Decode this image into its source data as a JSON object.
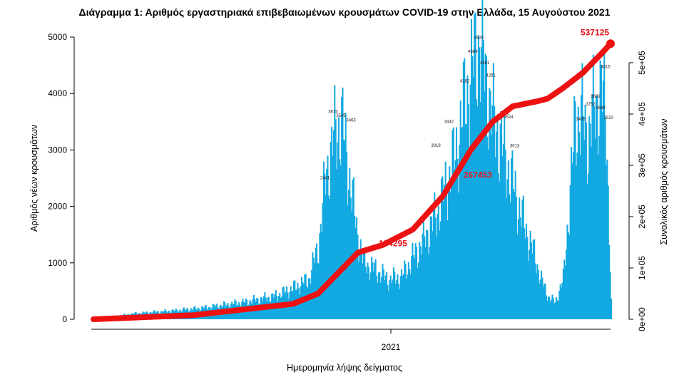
{
  "chart_data": {
    "type": "bar",
    "title": "Διάγραμμα 1: Αριθμός εργαστηριακά επιβεβαιωμένων κρουσμάτων COVID-19 στην Ελλάδα, 15 Αυγούστου 2021",
    "xlabel": "Ημερομηνία λήψης δείγματος",
    "ylabel": "Αριθμός νέων κρουσμάτων",
    "ylabel_right": "Συνολικός αριθμός κρουσμάτων",
    "x_tick_labels": [
      "2021"
    ],
    "y_ticks": [
      "0",
      "1000",
      "2000",
      "3000",
      "4000",
      "5000"
    ],
    "y2_ticks": [
      "0e+00",
      "1e+05",
      "2e+05",
      "3e+05",
      "4e+05",
      "5e+05"
    ],
    "ylim": [
      0,
      5000
    ],
    "y2lim": [
      0,
      560000
    ],
    "series": [
      {
        "kind": "bar",
        "color": "#12a9e2",
        "anchors": [
          [
            0,
            0
          ],
          [
            40,
            100
          ],
          [
            80,
            150
          ],
          [
            110,
            200
          ],
          [
            150,
            300
          ],
          [
            180,
            400
          ],
          [
            200,
            550
          ],
          [
            215,
            700
          ],
          [
            225,
            1300
          ],
          [
            232,
            2500
          ],
          [
            240,
            3200
          ],
          [
            248,
            3500
          ],
          [
            256,
            2500
          ],
          [
            263,
            1600
          ],
          [
            270,
            1000
          ],
          [
            280,
            900
          ],
          [
            295,
            700
          ],
          [
            308,
            750
          ],
          [
            320,
            1100
          ],
          [
            332,
            1450
          ],
          [
            342,
            1800
          ],
          [
            352,
            2300
          ],
          [
            362,
            2900
          ],
          [
            372,
            3900
          ],
          [
            380,
            4500
          ],
          [
            386,
            4928
          ],
          [
            392,
            4300
          ],
          [
            400,
            3500
          ],
          [
            408,
            3100
          ],
          [
            416,
            2600
          ],
          [
            424,
            2100
          ],
          [
            432,
            1600
          ],
          [
            440,
            1200
          ],
          [
            448,
            700
          ],
          [
            455,
            400
          ],
          [
            462,
            300
          ],
          [
            470,
            700
          ],
          [
            476,
            2000
          ],
          [
            482,
            3500
          ],
          [
            488,
            3600
          ],
          [
            495,
            3200
          ],
          [
            502,
            3800
          ],
          [
            508,
            4000
          ],
          [
            513,
            3600
          ],
          [
            518,
            300
          ]
        ]
      },
      {
        "kind": "cumulative",
        "color": "#ee1111",
        "anchors": [
          [
            0,
            0
          ],
          [
            100,
            8000
          ],
          [
            200,
            30000
          ],
          [
            225,
            50000
          ],
          [
            250,
            100000
          ],
          [
            265,
            130000
          ],
          [
            290,
            145000
          ],
          [
            320,
            175000
          ],
          [
            350,
            240000
          ],
          [
            378,
            330000
          ],
          [
            400,
            385000
          ],
          [
            420,
            415000
          ],
          [
            445,
            425000
          ],
          [
            455,
            430000
          ],
          [
            470,
            450000
          ],
          [
            490,
            480000
          ],
          [
            510,
            520000
          ],
          [
            518,
            537125
          ]
        ]
      }
    ],
    "bar_labels": [
      {
        "x": 232,
        "value": "2441"
      },
      {
        "x": 240,
        "value": "3615"
      },
      {
        "x": 248,
        "value": "3545"
      },
      {
        "x": 258,
        "value": "3463"
      },
      {
        "x": 343,
        "value": "3018"
      },
      {
        "x": 356,
        "value": "3442"
      },
      {
        "x": 372,
        "value": "4162"
      },
      {
        "x": 380,
        "value": "4684"
      },
      {
        "x": 386,
        "value": "4928"
      },
      {
        "x": 392,
        "value": "4481"
      },
      {
        "x": 398,
        "value": "4261"
      },
      {
        "x": 412,
        "value": "3592"
      },
      {
        "x": 416,
        "value": "3524"
      },
      {
        "x": 422,
        "value": "3013"
      },
      {
        "x": 488,
        "value": "3485"
      },
      {
        "x": 498,
        "value": "3752"
      },
      {
        "x": 503,
        "value": "3889"
      },
      {
        "x": 508,
        "value": "3688"
      },
      {
        "x": 513,
        "value": "4415"
      },
      {
        "x": 516,
        "value": "3510"
      }
    ],
    "annotations": [
      {
        "x": 300,
        "value": "134295"
      },
      {
        "x": 385,
        "value": "267453"
      },
      {
        "x": 518,
        "value": "537125"
      }
    ],
    "grid": false,
    "legend": "none"
  }
}
